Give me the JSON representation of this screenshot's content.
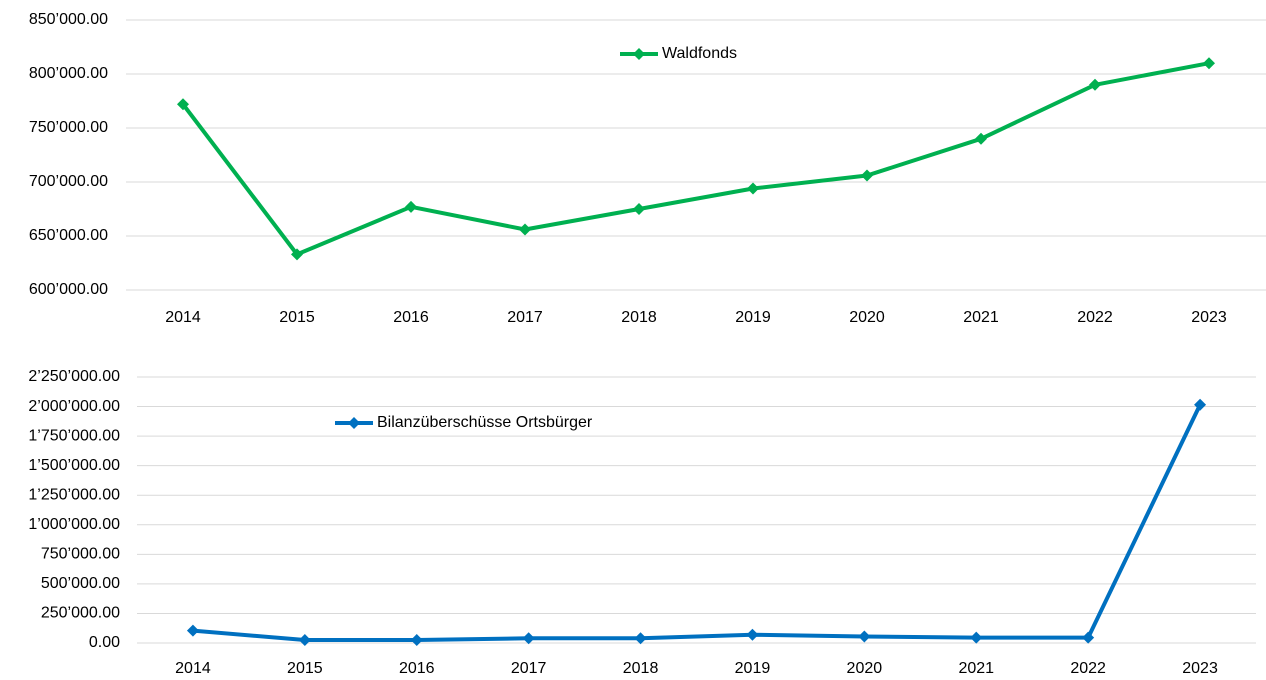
{
  "chart_data": [
    {
      "type": "line",
      "categories": [
        "2014",
        "2015",
        "2016",
        "2017",
        "2018",
        "2019",
        "2020",
        "2021",
        "2022",
        "2023"
      ],
      "series": [
        {
          "name": "Waldfonds",
          "color": "#00b050",
          "values": [
            772000,
            633000,
            677000,
            656000,
            675000,
            694000,
            706000,
            740000,
            790000,
            810000
          ]
        }
      ],
      "ylim": [
        600000,
        850000
      ],
      "yticks": [
        {
          "value": 600000,
          "label": "600’000.00"
        },
        {
          "value": 650000,
          "label": "650’000.00"
        },
        {
          "value": 700000,
          "label": "700’000.00"
        },
        {
          "value": 750000,
          "label": "750’000.00"
        },
        {
          "value": 800000,
          "label": "800’000.00"
        },
        {
          "value": 850000,
          "label": "850’000.00"
        }
      ],
      "grid": true
    },
    {
      "type": "line",
      "categories": [
        "2014",
        "2015",
        "2016",
        "2017",
        "2018",
        "2019",
        "2020",
        "2021",
        "2022",
        "2023"
      ],
      "series": [
        {
          "name": "Bilanzüberschüsse Ortsbürger",
          "color": "#0070c0",
          "values": [
            105000,
            25000,
            25000,
            40000,
            40000,
            70000,
            55000,
            45000,
            45000,
            2015000
          ]
        }
      ],
      "ylim": [
        0,
        2250000
      ],
      "yticks": [
        {
          "value": 0,
          "label": "0.00"
        },
        {
          "value": 250000,
          "label": "250’000.00"
        },
        {
          "value": 500000,
          "label": "500’000.00"
        },
        {
          "value": 750000,
          "label": "750’000.00"
        },
        {
          "value": 1000000,
          "label": "1’000’000.00"
        },
        {
          "value": 1250000,
          "label": "1’250’000.00"
        },
        {
          "value": 1500000,
          "label": "1’500’000.00"
        },
        {
          "value": 1750000,
          "label": "1’750’000.00"
        },
        {
          "value": 2000000,
          "label": "2’000’000.00"
        },
        {
          "value": 2250000,
          "label": "2’250’000.00"
        }
      ],
      "grid": true
    }
  ]
}
